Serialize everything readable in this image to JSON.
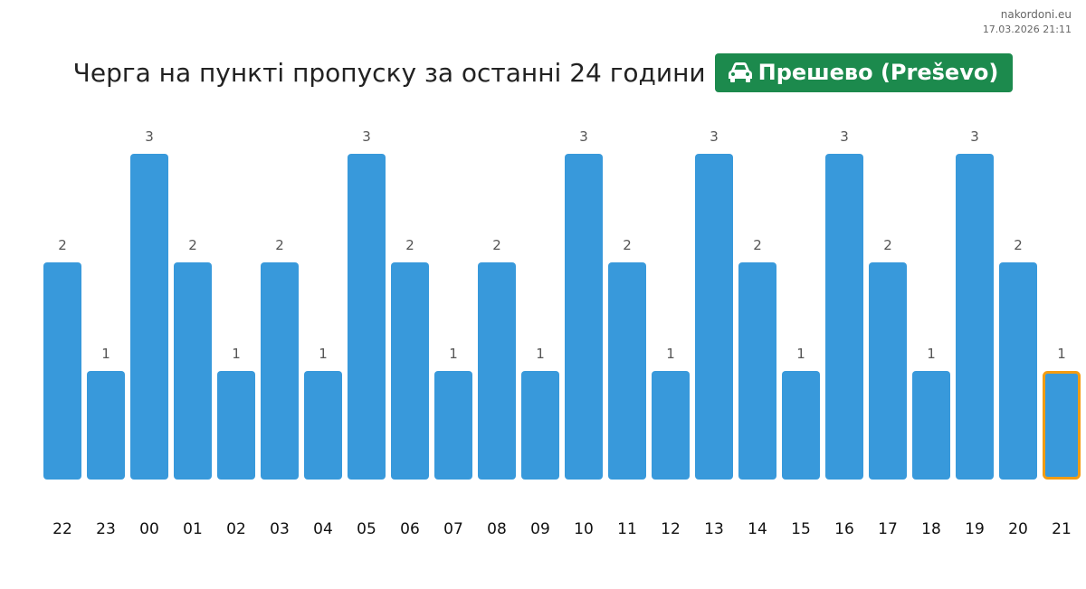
{
  "site": "nakordoni.eu",
  "timestamp": "17.03.2026 21:11",
  "header": {
    "title": "Черга на пункті пропуску за останні 24 години",
    "checkpoint": "Прешево (Preševo)",
    "checkpoint_icon": "car-icon",
    "badge_color": "#1c8a4d"
  },
  "chart_data": {
    "type": "bar",
    "categories": [
      "22",
      "23",
      "00",
      "01",
      "02",
      "03",
      "04",
      "05",
      "06",
      "07",
      "08",
      "09",
      "10",
      "11",
      "12",
      "13",
      "14",
      "15",
      "16",
      "17",
      "18",
      "19",
      "20",
      "21"
    ],
    "values": [
      2,
      1,
      3,
      2,
      1,
      2,
      1,
      3,
      2,
      1,
      2,
      1,
      3,
      2,
      1,
      3,
      2,
      1,
      3,
      2,
      1,
      3,
      2,
      1
    ],
    "highlight_index": 23,
    "bar_color": "#3899db",
    "highlight_color": "#f39c12",
    "ylim": [
      0,
      3
    ],
    "grid": false,
    "title": "",
    "xlabel": "",
    "ylabel": ""
  }
}
